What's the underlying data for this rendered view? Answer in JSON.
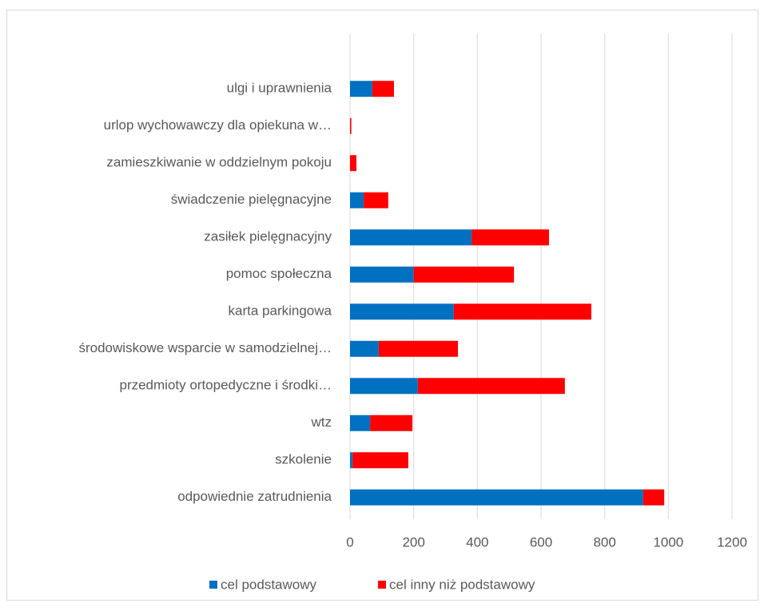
{
  "chart_data": {
    "type": "stacked-bar-horizontal",
    "categories": [
      "ulgi i uprawnienia",
      "urlop wychowawczy dla opiekuna w…",
      "zamieszkiwanie w oddzielnym pokoju",
      "świadczenie pielęgnacyjne",
      "zasiłek pielęgnacyjny",
      "pomoc społeczna",
      "karta parkingowa",
      "środowiskowe wsparcie w samodzielnej…",
      "przedmioty ortopedyczne i środki…",
      "wtz",
      "szkolenie",
      "odpowiednie zatrudnienia"
    ],
    "series": [
      {
        "name": "cel podstawowy",
        "color": "#0070c0",
        "values": [
          70,
          0,
          0,
          43,
          382,
          200,
          326,
          90,
          213,
          63,
          8,
          921
        ]
      },
      {
        "name": "cel inny niż podstawowy",
        "color": "#ff0000",
        "values": [
          68,
          4,
          20,
          77,
          243,
          315,
          432,
          249,
          462,
          133,
          175,
          66
        ]
      }
    ],
    "xlim": [
      0,
      1200
    ],
    "xticks": [
      0,
      200,
      400,
      600,
      800,
      1000,
      1200
    ],
    "grid": true,
    "legend": "bottom"
  }
}
